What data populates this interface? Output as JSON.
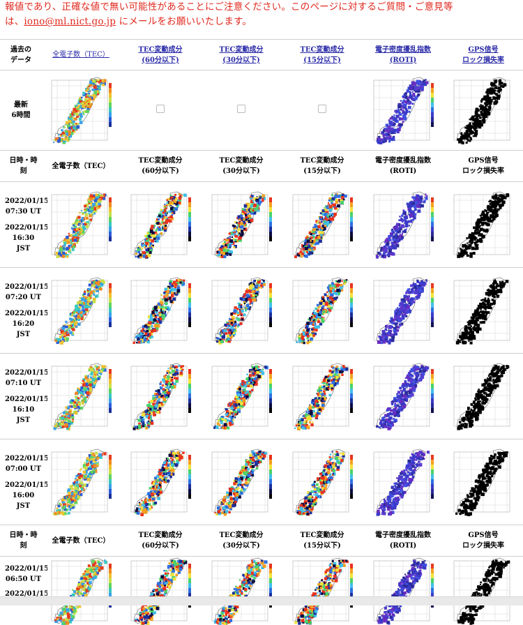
{
  "notice": {
    "line1": "報値であり、正確な値で無い可能性があることにご注意ください。このページに対するご質問・ご意見等",
    "line2_prefix": "は、",
    "email": "iono@ml.nict.go.jp",
    "line2_suffix": " にメールをお願いいたします。"
  },
  "header_top": {
    "past_data": "過去の\nデータ",
    "col1": "全電子数（TEC）",
    "col2": "TEC変動成分\n(60分以下)",
    "col3": "TEC変動成分\n(30分以下)",
    "col4": "TEC変動成分\n(15分以下)",
    "col5": "電子密度擾乱指数\n(ROTI)",
    "col6": "GPS信号\nロック損失率"
  },
  "latest_label": "最新\n6時間",
  "header_repeat": {
    "datetime": "日時・時\n刻",
    "col1": "全電子数（TEC）",
    "col2": "TEC変動成分\n(60分以下)",
    "col3": "TEC変動成分\n(30分以下)",
    "col4": "TEC変動成分\n(15分以下)",
    "col5": "電子密度擾乱指数\n(ROTI)",
    "col6": "GPS信号\nロック損失率"
  },
  "rows": [
    {
      "ut": "2022/01/15\n07:30 UT",
      "jst": "2022/01/15\n16:30\nJST"
    },
    {
      "ut": "2022/01/15\n07:20 UT",
      "jst": "2022/01/15\n16:20\nJST"
    },
    {
      "ut": "2022/01/15\n07:10 UT",
      "jst": "2022/01/15\n16:10\nJST"
    },
    {
      "ut": "2022/01/15\n07:00 UT",
      "jst": "2022/01/15\n16:00\nJST"
    }
  ],
  "last_row": {
    "ut": "2022/01/15\n06:50 UT",
    "jst": "2022/01/15"
  },
  "colors": {
    "notice": "#e0281e",
    "link": "#2a2aa8"
  }
}
